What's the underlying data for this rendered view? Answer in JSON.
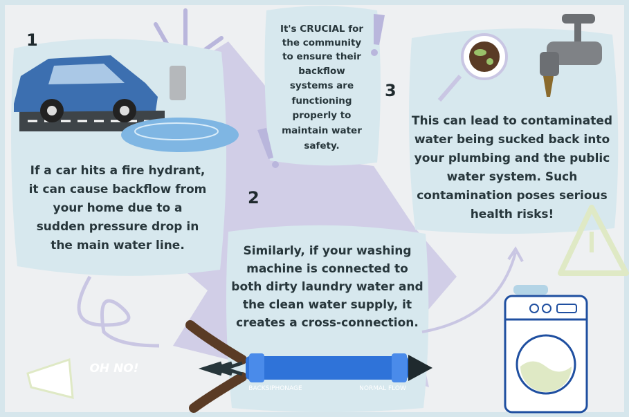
{
  "callout": {
    "lines": [
      "It's CRUCIAL for",
      "the community",
      "to ensure their",
      "backflow",
      "systems are",
      "functioning",
      "properly to",
      "maintain water",
      "safety."
    ]
  },
  "steps": [
    {
      "number": "1",
      "lines": [
        "If a car hits a fire hydrant,",
        "it can cause backflow from",
        "your home due to a",
        "sudden pressure drop in",
        "the main water line."
      ]
    },
    {
      "number": "2",
      "lines": [
        "Similarly, if your washing",
        "machine is connected to",
        "both dirty laundry water and",
        "the clean water supply, it",
        "creates a cross-connection."
      ]
    },
    {
      "number": "3",
      "lines": [
        "This can lead to contaminated",
        "water being sucked back into",
        "your plumbing and the public",
        "water system. Such",
        "contamination poses serious",
        "health risks!"
      ]
    }
  ],
  "exclamation": "OH NO!",
  "pipe": {
    "left_label": "BACKSIPHONAGE",
    "right_label": "NORMAL FLOW"
  }
}
